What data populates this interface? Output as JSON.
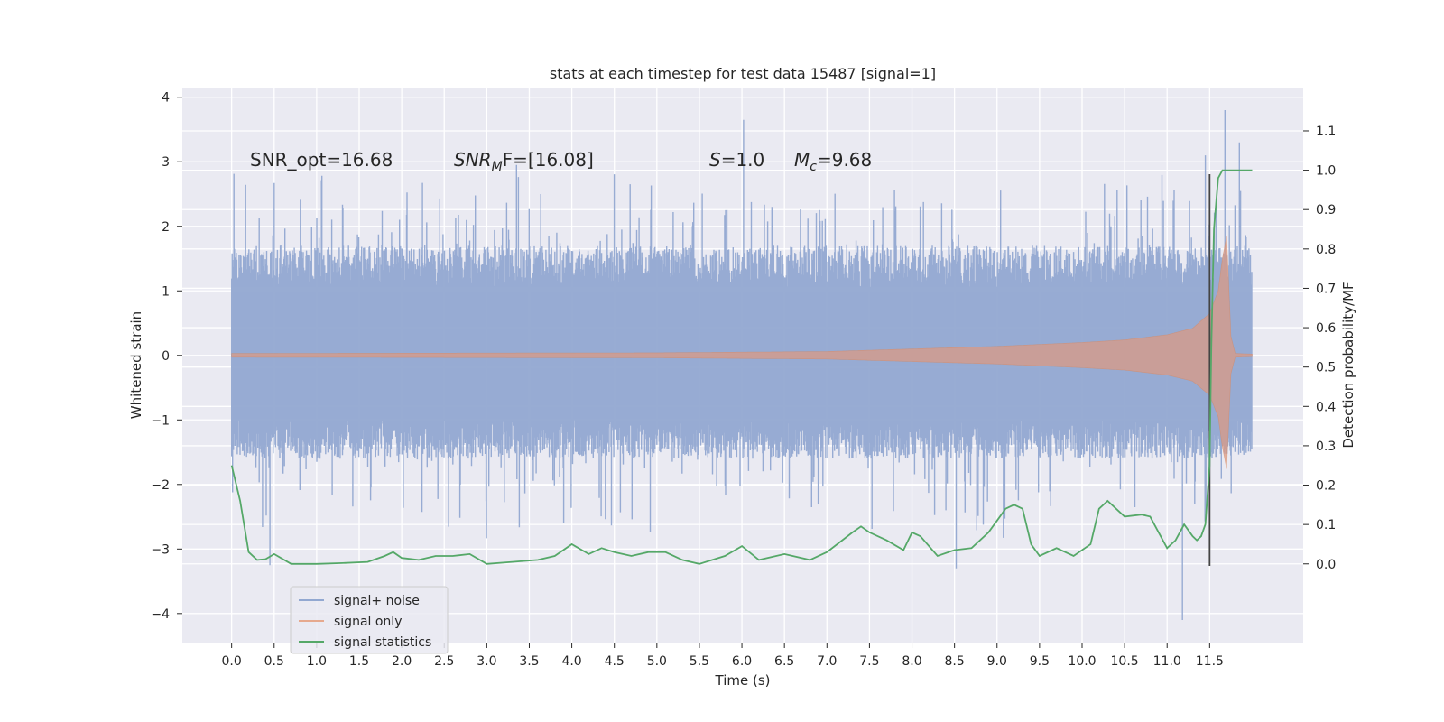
{
  "chart_data": {
    "type": "line",
    "title": "stats at each timestep for test data 15487 [signal=1]",
    "xlabel": "Time (s)",
    "ylabel_left": "Whitened strain",
    "ylabel_right": "Detection probability/MF",
    "xlim": [
      -0.58,
      12.6
    ],
    "ylim_left": [
      -4.45,
      4.15
    ],
    "ylim_right": [
      -0.2,
      1.21
    ],
    "grid": true,
    "legend_position": "lower-left",
    "x_ticks": [
      "0.0",
      "0.5",
      "1.0",
      "1.5",
      "2.0",
      "2.5",
      "3.0",
      "3.5",
      "4.0",
      "4.5",
      "5.0",
      "5.5",
      "6.0",
      "6.5",
      "7.0",
      "7.5",
      "8.0",
      "8.5",
      "9.0",
      "9.5",
      "10.0",
      "10.5",
      "11.0",
      "11.5"
    ],
    "y_ticks_left": [
      "4",
      "3",
      "2",
      "1",
      "0",
      "−1",
      "−2",
      "−3",
      "−4"
    ],
    "y_ticks_right": [
      "1.1",
      "1.0",
      "0.9",
      "0.8",
      "0.7",
      "0.6",
      "0.5",
      "0.4",
      "0.3",
      "0.2",
      "0.1",
      "0.0"
    ],
    "annotations": {
      "snr_opt": "SNR_opt=16.68",
      "snr_mf_main": "SNR",
      "snr_mf_sub": "M",
      "snr_mf_rest": "F=[16.08]",
      "s_var": "S",
      "s_rest": "=1.0",
      "mc_var": "M",
      "mc_sub": "c",
      "mc_rest": "=9.68"
    },
    "detection_marker_x": 11.5,
    "series": [
      {
        "name": "signal+ noise",
        "color": "#92a8d1",
        "axis": "left",
        "style": "dense noise band",
        "x_range": [
          0.0,
          12.0
        ],
        "typical_band": [
          -1.6,
          1.7
        ],
        "extremes": {
          "max": 3.8,
          "min": -4.1
        }
      },
      {
        "name": "signal only",
        "color": "#dd8452",
        "axis": "left",
        "style": "chirp envelope",
        "x_range": [
          0.0,
          12.0
        ],
        "envelope": {
          "x": [
            0.0,
            5.0,
            7.0,
            8.0,
            9.0,
            10.0,
            10.5,
            11.0,
            11.3,
            11.5,
            11.6,
            11.65,
            11.7,
            11.75,
            11.8,
            12.0
          ],
          "amp": [
            0.03,
            0.04,
            0.06,
            0.1,
            0.14,
            0.2,
            0.24,
            0.32,
            0.42,
            0.65,
            1.0,
            1.5,
            1.85,
            0.3,
            0.03,
            0.02
          ]
        }
      },
      {
        "name": "signal statistics",
        "color": "#55a868",
        "axis": "right",
        "x": [
          0.0,
          0.1,
          0.2,
          0.3,
          0.4,
          0.5,
          0.7,
          1.0,
          1.3,
          1.6,
          1.8,
          1.9,
          2.0,
          2.2,
          2.4,
          2.6,
          2.8,
          3.0,
          3.3,
          3.6,
          3.8,
          4.0,
          4.2,
          4.35,
          4.5,
          4.7,
          4.9,
          5.1,
          5.3,
          5.5,
          5.8,
          6.0,
          6.2,
          6.5,
          6.8,
          7.0,
          7.3,
          7.4,
          7.5,
          7.7,
          7.9,
          8.0,
          8.1,
          8.3,
          8.5,
          8.7,
          8.9,
          9.0,
          9.1,
          9.2,
          9.3,
          9.4,
          9.5,
          9.7,
          9.9,
          10.1,
          10.2,
          10.3,
          10.5,
          10.7,
          10.8,
          10.9,
          11.0,
          11.1,
          11.2,
          11.3,
          11.35,
          11.4,
          11.45,
          11.5,
          11.52,
          11.55,
          11.6,
          11.65,
          11.7,
          11.8,
          11.9,
          12.0
        ],
        "values": [
          0.25,
          0.16,
          0.03,
          0.01,
          0.012,
          0.025,
          0.0,
          0.0,
          0.002,
          0.005,
          0.02,
          0.03,
          0.015,
          0.01,
          0.02,
          0.02,
          0.025,
          0.0,
          0.005,
          0.01,
          0.02,
          0.05,
          0.025,
          0.04,
          0.03,
          0.02,
          0.03,
          0.03,
          0.01,
          0.0,
          0.02,
          0.045,
          0.01,
          0.025,
          0.01,
          0.03,
          0.08,
          0.095,
          0.08,
          0.06,
          0.035,
          0.08,
          0.07,
          0.02,
          0.035,
          0.04,
          0.08,
          0.11,
          0.14,
          0.15,
          0.14,
          0.05,
          0.02,
          0.04,
          0.02,
          0.05,
          0.14,
          0.16,
          0.12,
          0.125,
          0.12,
          0.08,
          0.04,
          0.06,
          0.1,
          0.07,
          0.06,
          0.07,
          0.1,
          0.25,
          0.55,
          0.85,
          0.98,
          1.0,
          1.0,
          1.0,
          1.0,
          1.0
        ]
      }
    ]
  }
}
